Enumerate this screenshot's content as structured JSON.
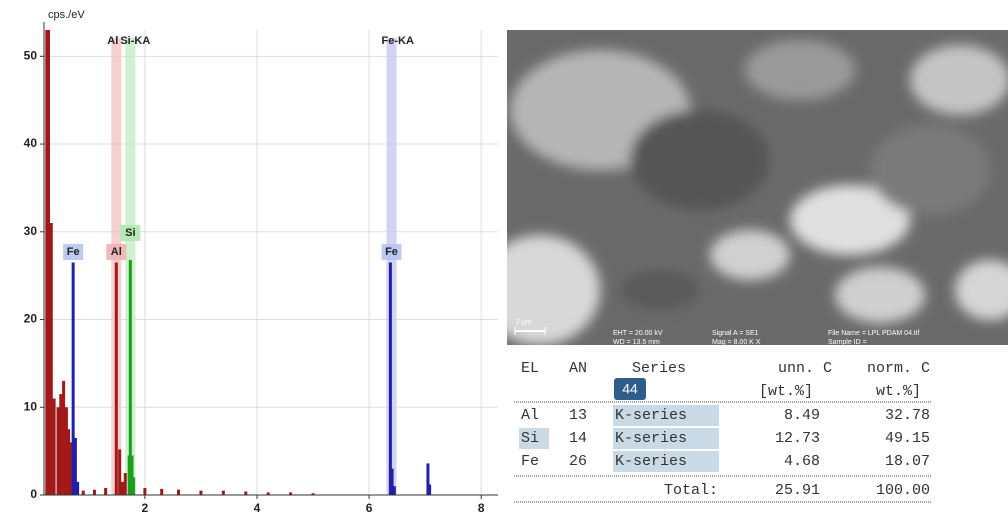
{
  "chart_data": {
    "type": "spectrum",
    "y_label": "cps./eV",
    "xlim": [
      0.2,
      8.3
    ],
    "ylim": [
      0,
      53
    ],
    "xticks": [
      2,
      4,
      6,
      8
    ],
    "yticks": [
      0,
      10,
      20,
      30,
      40,
      50
    ],
    "grid": true,
    "series": [
      {
        "color": "#a01818",
        "x": [
          0.25,
          0.28,
          0.33,
          0.38,
          0.45,
          0.5,
          0.55,
          0.6,
          0.64,
          0.68,
          0.9,
          1.1,
          1.3,
          1.49,
          1.55,
          1.6,
          1.65,
          2.0,
          2.3,
          2.6,
          3.0,
          3.4,
          3.8,
          4.2,
          4.6,
          5.0
        ],
        "values": [
          53,
          53,
          31,
          11,
          10,
          11.5,
          13,
          10,
          7.5,
          6,
          0.5,
          0.6,
          0.8,
          26.5,
          5.2,
          1.5,
          2.5,
          0.8,
          0.7,
          0.6,
          0.5,
          0.5,
          0.4,
          0.3,
          0.3,
          0.2
        ]
      },
      {
        "color": "#2020a8",
        "x": [
          0.72,
          0.76,
          0.8,
          6.38,
          6.41,
          6.45,
          7.05,
          7.08
        ],
        "values": [
          26.5,
          6.5,
          1.5,
          26.5,
          3,
          1,
          3.6,
          1.2
        ]
      },
      {
        "color": "#18a018",
        "x": [
          1.72,
          1.74,
          1.77,
          1.8
        ],
        "values": [
          4.5,
          26.8,
          4.5,
          2
        ]
      }
    ],
    "bands": [
      {
        "text": "Al",
        "x": 1.49,
        "color": "#f2c4c4"
      },
      {
        "text": "Si-KA",
        "x": 1.74,
        "color": "#c4ecc4"
      },
      {
        "text": "Fe-KA",
        "x": 6.4,
        "color": "#c8c8f0"
      }
    ],
    "peak_labels": [
      {
        "text": "Fe",
        "x": 0.72,
        "color": "#b8c4f0"
      },
      {
        "text": "Al",
        "x": 1.49,
        "color": "#f0b0b0"
      },
      {
        "text": "Si",
        "x": 1.74,
        "color": "#b0e8b0"
      },
      {
        "text": "Fe",
        "x": 6.4,
        "color": "#b8c4f0"
      }
    ]
  },
  "image": {
    "scale": "2 µm",
    "info": [
      "EHT = 20.00 kV",
      "WD = 13.5 mm",
      "Signal A = SE1",
      "Mag =  8.00 K X",
      "File Name = LPL PDAM  04.tif",
      "Sample ID ="
    ]
  },
  "table": {
    "header": [
      "EL",
      "AN",
      "Series",
      "unn. C",
      "norm. C"
    ],
    "badge": "44",
    "units": [
      "[wt.%]",
      "wt.%]"
    ],
    "rows": [
      [
        "Al",
        "13",
        "K-series",
        "8.49",
        "32.78"
      ],
      [
        "Si",
        "14",
        "K-series",
        "12.73",
        "49.15"
      ],
      [
        "Fe",
        "26",
        "K-series",
        "4.68",
        "18.07"
      ]
    ],
    "total": [
      "Total:",
      "25.91",
      "100.00"
    ]
  }
}
